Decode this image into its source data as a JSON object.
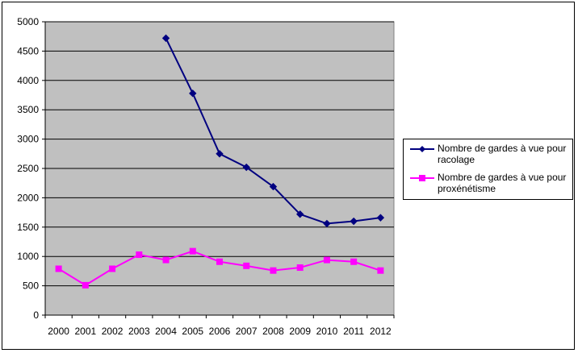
{
  "chart_data": {
    "type": "line",
    "title": "",
    "xlabel": "",
    "ylabel": "",
    "ylim": [
      0,
      5000
    ],
    "yticks": [
      "0",
      "500",
      "1000",
      "1500",
      "2000",
      "2500",
      "3000",
      "3500",
      "4000",
      "4500",
      "5000"
    ],
    "x": [
      "2000",
      "2001",
      "2002",
      "2003",
      "2004",
      "2005",
      "2006",
      "2007",
      "2008",
      "2009",
      "2010",
      "2011",
      "2012"
    ],
    "grid": true,
    "legend_position": "right",
    "plot_background": "#c0c0c0",
    "series": [
      {
        "name": "Nombre de gardes à vue pour racolage",
        "color": "#000080",
        "marker": "diamond",
        "values": [
          null,
          null,
          null,
          null,
          4720,
          3780,
          2750,
          2520,
          2190,
          1720,
          1560,
          1600,
          1660
        ]
      },
      {
        "name": "Nombre de gardes à vue pour proxénétisme",
        "color": "#ff00ff",
        "marker": "square",
        "values": [
          790,
          510,
          790,
          1030,
          940,
          1090,
          910,
          840,
          760,
          810,
          940,
          910,
          760
        ]
      }
    ]
  }
}
